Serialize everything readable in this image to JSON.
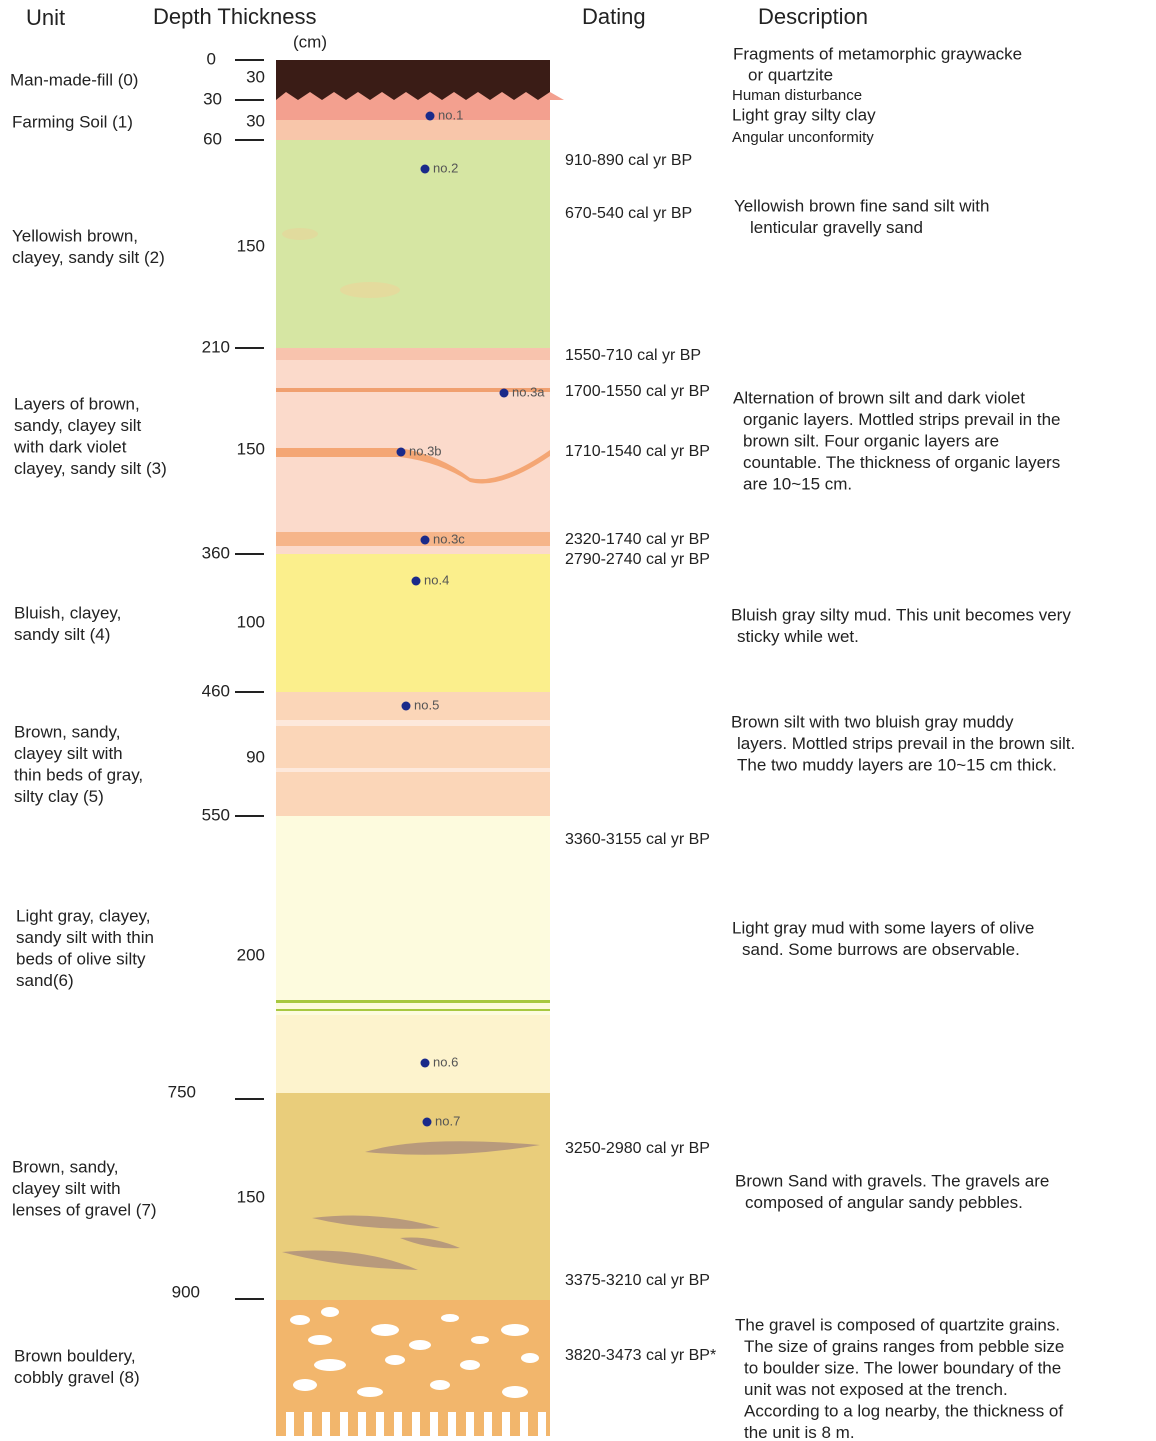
{
  "header": {
    "unit": "Unit",
    "depth_thickness": "Depth Thickness",
    "unit_cm": "(cm)",
    "dating": "Dating",
    "description": "Description"
  },
  "depths": [
    0,
    30,
    60,
    210,
    360,
    460,
    550,
    750,
    900
  ],
  "thicknesses": [
    30,
    30,
    150,
    150,
    100,
    90,
    200,
    150
  ],
  "units": [
    [
      "Man-made-fill (0)"
    ],
    [
      "Farming Soil (1)"
    ],
    [
      "Yellowish brown,",
      "clayey, sandy silt (2)"
    ],
    [
      "Layers of brown,",
      "sandy, clayey silt",
      "with dark violet",
      "clayey, sandy silt (3)"
    ],
    [
      "Bluish, clayey,",
      "sandy silt (4)"
    ],
    [
      "Brown, sandy,",
      "clayey silt with",
      "thin beds of gray,",
      "silty clay (5)"
    ],
    [
      "Light gray, clayey,",
      "sandy silt with thin",
      "beds of olive silty",
      "sand(6)"
    ],
    [
      "Brown, sandy,",
      "clayey silt with",
      "lenses of gravel (7)"
    ],
    [
      "Brown bouldery,",
      "cobbly gravel (8)"
    ]
  ],
  "samples": [
    "no.1",
    "no.2",
    "no.3a",
    "no.3b",
    "no.3c",
    "no.4",
    "no.5",
    "no.6",
    "no.7"
  ],
  "dates": [
    "910-890 cal yr BP",
    "670-540 cal yr BP",
    "1550-710 cal yr BP",
    "1700-1550 cal yr BP",
    "1710-1540 cal yr BP",
    "2320-1740 cal yr BP",
    "2790-2740 cal yr BP",
    "3360-3155 cal yr BP",
    "3250-2980 cal yr BP",
    "3375-3210 cal yr BP",
    "3820-3473 cal yr BP*"
  ],
  "descriptions": [
    [
      "Fragments of metamorphic graywacke",
      "or quartzite",
      "Human disturbance",
      "Light gray silty clay",
      "Angular unconformity"
    ],
    [
      "Yellowish brown fine sand silt with",
      "lenticular gravelly sand"
    ],
    [
      "Alternation of brown silt and dark violet",
      "organic layers. Mottled strips prevail in the",
      "brown silt. Four organic layers are",
      "countable. The thickness of organic layers",
      "are 10~15 cm."
    ],
    [
      "Bluish gray silty mud. This unit becomes very",
      "sticky while wet."
    ],
    [
      "Brown silt with two bluish gray muddy",
      "layers. Mottled strips prevail in the brown silt.",
      "The two muddy layers are 10~15 cm thick."
    ],
    [
      "Light gray mud with some layers of olive",
      "sand. Some burrows are observable."
    ],
    [
      "Brown Sand with gravels. The gravels are",
      "composed of angular sandy pebbles."
    ],
    [
      "The gravel is composed of quartzite grains.",
      "The size of grains ranges from pebble size",
      "to boulder size. The lower boundary of the",
      "unit was not exposed at the trench.",
      "According to a log nearby, the thickness of",
      "the unit is 8 m."
    ]
  ]
}
